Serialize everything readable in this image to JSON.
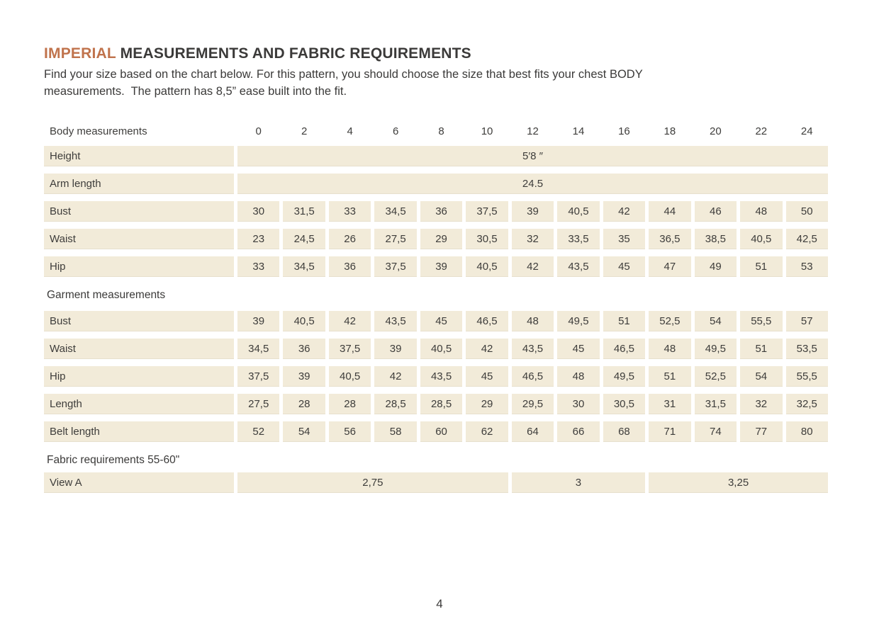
{
  "header": {
    "title_accent": "IMPERIAL",
    "title_rest": "MEASUREMENTS AND FABRIC REQUIREMENTS",
    "intro_line1": "Find your size based on the chart below. For this pattern, you should choose the size that best fits your chest BODY",
    "intro_line2": "measurements.  The pattern has 8,5” ease built into the fit."
  },
  "table": {
    "header_label": "Body measurements",
    "sizes": [
      "0",
      "2",
      "4",
      "6",
      "8",
      "10",
      "12",
      "14",
      "16",
      "18",
      "20",
      "22",
      "24"
    ],
    "body_rows": [
      {
        "label": "Height",
        "merged": "5′8 ″"
      },
      {
        "label": "Arm length",
        "merged": "24.5"
      },
      {
        "label": "Bust",
        "values": [
          "30",
          "31,5",
          "33",
          "34,5",
          "36",
          "37,5",
          "39",
          "40,5",
          "42",
          "44",
          "46",
          "48",
          "50"
        ]
      },
      {
        "label": "Waist",
        "values": [
          "23",
          "24,5",
          "26",
          "27,5",
          "29",
          "30,5",
          "32",
          "33,5",
          "35",
          "36,5",
          "38,5",
          "40,5",
          "42,5"
        ]
      },
      {
        "label": "Hip",
        "values": [
          "33",
          "34,5",
          "36",
          "37,5",
          "39",
          "40,5",
          "42",
          "43,5",
          "45",
          "47",
          "49",
          "51",
          "53"
        ]
      }
    ],
    "garment_section_label": "Garment measurements",
    "garment_rows": [
      {
        "label": "Bust",
        "values": [
          "39",
          "40,5",
          "42",
          "43,5",
          "45",
          "46,5",
          "48",
          "49,5",
          "51",
          "52,5",
          "54",
          "55,5",
          "57"
        ]
      },
      {
        "label": "Waist",
        "values": [
          "34,5",
          "36",
          "37,5",
          "39",
          "40,5",
          "42",
          "43,5",
          "45",
          "46,5",
          "48",
          "49,5",
          "51",
          "53,5"
        ]
      },
      {
        "label": "Hip",
        "values": [
          "37,5",
          "39",
          "40,5",
          "42",
          "43,5",
          "45",
          "46,5",
          "48",
          "49,5",
          "51",
          "52,5",
          "54",
          "55,5"
        ]
      },
      {
        "label": "Length",
        "values": [
          "27,5",
          "28",
          "28",
          "28,5",
          "28,5",
          "29",
          "29,5",
          "30",
          "30,5",
          "31",
          "31,5",
          "32",
          "32,5"
        ]
      },
      {
        "label": "Belt length",
        "values": [
          "52",
          "54",
          "56",
          "58",
          "60",
          "62",
          "64",
          "66",
          "68",
          "71",
          "74",
          "77",
          "80"
        ]
      }
    ],
    "fabric_section_label": "Fabric requirements 55-60\"",
    "fabric_rows": [
      {
        "label": "View A",
        "cells": [
          {
            "value": "2,75",
            "span": 6
          },
          {
            "value": "3",
            "span": 3
          },
          {
            "value": "3,25",
            "span": 4
          }
        ]
      }
    ]
  },
  "footer": {
    "page_number": "4"
  },
  "colors": {
    "accent": "#c0734c",
    "cell_bg": "#f2ebd9",
    "text": "#3b3a39"
  }
}
